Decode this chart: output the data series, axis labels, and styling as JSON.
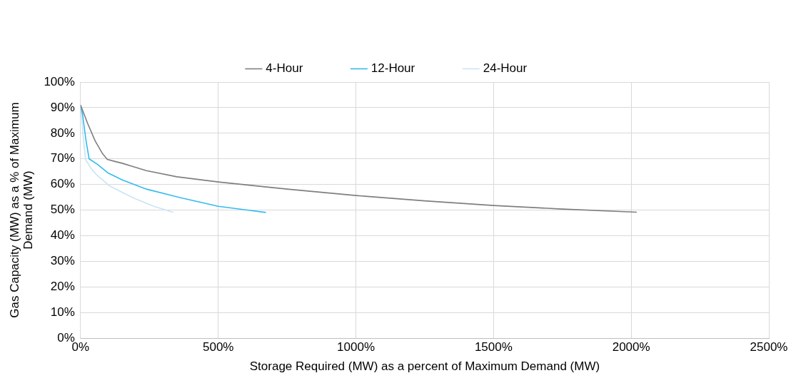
{
  "chart_data": {
    "type": "line",
    "xlabel": "Storage Required (MW) as a percent of Maximum Demand (MW)",
    "ylabel": "Gas Capacity (MW) as a % of Maximum Demand (MW)",
    "series": [
      {
        "name": "4-Hour",
        "color": "#7f7f7f",
        "x": [
          0,
          25,
          53,
          80,
          97,
          125,
          151,
          190,
          239,
          350,
          500,
          750,
          1000,
          1250,
          1500,
          1750,
          2020
        ],
        "values": [
          91,
          84,
          77,
          72,
          69.8,
          69,
          68.3,
          67,
          65.4,
          63,
          61,
          58.2,
          55.7,
          53.6,
          51.8,
          50.4,
          49.2
        ]
      },
      {
        "name": "12-Hour",
        "color": "#33bbee",
        "x": [
          0,
          7,
          20,
          31,
          62,
          100,
          151,
          239,
          372,
          500,
          600,
          673
        ],
        "values": [
          91,
          87.4,
          77,
          70,
          67.8,
          64.5,
          61.8,
          58.2,
          54.6,
          51.5,
          50.1,
          49.1
        ]
      },
      {
        "name": "24-Hour",
        "color": "#c9e4f5",
        "x": [
          0,
          9,
          18,
          40,
          62,
          106,
          150,
          195,
          266,
          337
        ],
        "values": [
          91,
          79.4,
          69.8,
          66,
          63.4,
          59.4,
          57,
          54.6,
          51.5,
          49.1
        ]
      }
    ],
    "xlim": [
      0,
      2500
    ],
    "xticks": [
      {
        "value": 0,
        "label": "0%"
      },
      {
        "value": 500,
        "label": "500%"
      },
      {
        "value": 1000,
        "label": "1000%"
      },
      {
        "value": 1500,
        "label": "1500%"
      },
      {
        "value": 2000,
        "label": "2000%"
      },
      {
        "value": 2500,
        "label": "2500%"
      }
    ],
    "ylim": [
      0,
      100
    ],
    "yticks": [
      {
        "value": 0,
        "label": "0%"
      },
      {
        "value": 10,
        "label": "10%"
      },
      {
        "value": 20,
        "label": "20%"
      },
      {
        "value": 30,
        "label": "30%"
      },
      {
        "value": 40,
        "label": "40%"
      },
      {
        "value": 50,
        "label": "50%"
      },
      {
        "value": 60,
        "label": "60%"
      },
      {
        "value": 70,
        "label": "70%"
      },
      {
        "value": 80,
        "label": "80%"
      },
      {
        "value": 90,
        "label": "90%"
      },
      {
        "value": 100,
        "label": "100%"
      }
    ],
    "grid": true,
    "legend": "top",
    "marker": "none",
    "line_style": "solid"
  }
}
